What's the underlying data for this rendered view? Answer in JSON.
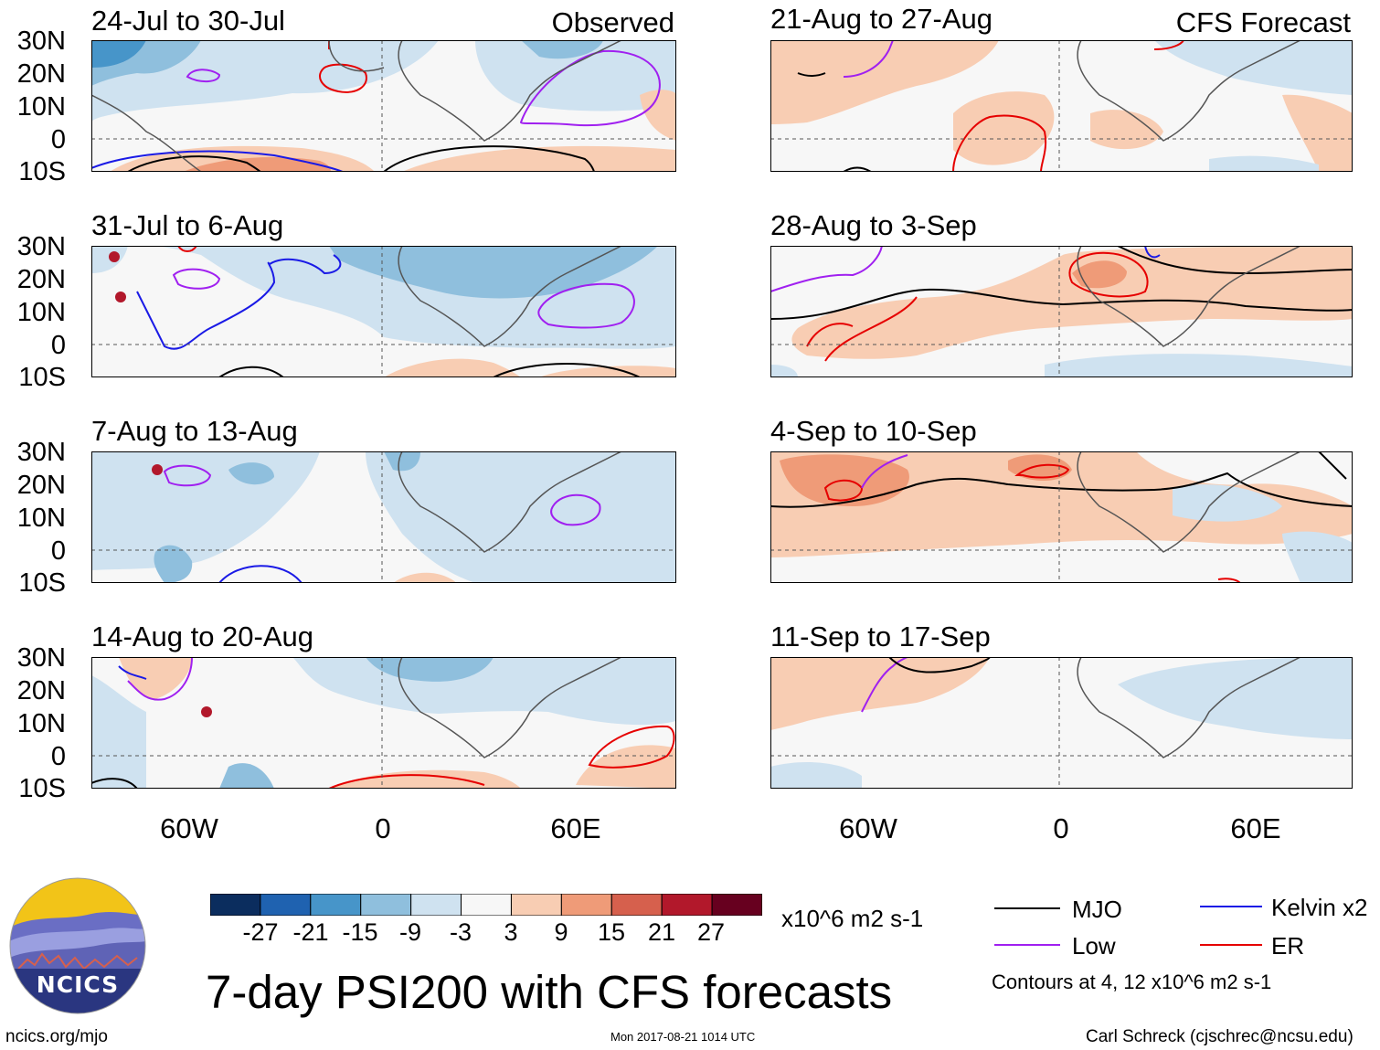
{
  "header": {
    "observed_label": "Observed",
    "forecast_label": "CFS Forecast"
  },
  "axes": {
    "lat_labels": [
      "30N",
      "20N",
      "10N",
      "0",
      "10S"
    ],
    "lon_labels": [
      "60W",
      "0",
      "60E"
    ]
  },
  "panels_left": [
    {
      "title": "24-Jul to 30-Jul"
    },
    {
      "title": "31-Jul to 6-Aug"
    },
    {
      "title": "7-Aug to 13-Aug"
    },
    {
      "title": "14-Aug to 20-Aug"
    }
  ],
  "panels_right": [
    {
      "title": "21-Aug to 27-Aug"
    },
    {
      "title": "28-Aug to 3-Sep"
    },
    {
      "title": "4-Sep to 10-Sep"
    },
    {
      "title": "11-Sep to 17-Sep"
    }
  ],
  "colorbar": {
    "labels": [
      "-27",
      "-21",
      "-15",
      "-9",
      "-3",
      "3",
      "9",
      "15",
      "21",
      "27"
    ],
    "colors": [
      "#0b2d5e",
      "#1f62b0",
      "#4795c9",
      "#8fbfdd",
      "#cfe2f0",
      "#f7f7f7",
      "#f8cdb3",
      "#ef9b78",
      "#d6604d",
      "#b2182b",
      "#67001f"
    ],
    "units": "x10^6 m2 s-1"
  },
  "legend": {
    "items": [
      {
        "label": "MJO",
        "color": "#000000"
      },
      {
        "label": "Kelvin x2",
        "color": "#1a1ae6"
      },
      {
        "label": "Low",
        "color": "#a020f0"
      },
      {
        "label": "ER",
        "color": "#e60000"
      }
    ],
    "note": "Contours at 4, 12 x10^6 m2 s-1"
  },
  "title": "7-day PSI200 with CFS forecasts",
  "footer": {
    "url": "ncics.org/mjo",
    "timestamp": "Mon 2017-08-21 1014 UTC",
    "credit": "Carl Schreck (cjschrec@ncsu.edu)"
  },
  "logo": {
    "text": "NCICS"
  }
}
